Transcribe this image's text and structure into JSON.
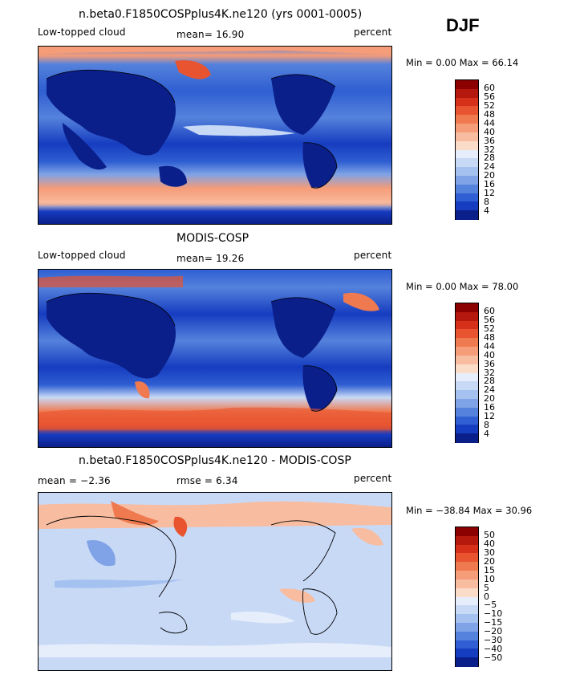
{
  "header": {
    "season": "DJF"
  },
  "panels": [
    {
      "title": "n.beta0.F1850COSPplus4K.ne120 (yrs 0001-0005)",
      "left_label": "Low-topped cloud",
      "stat": "mean=  16.90",
      "units": "percent",
      "minmax": "Min =   0.00 Max =  66.14",
      "colorbar": [
        "60",
        "56",
        "52",
        "48",
        "44",
        "40",
        "36",
        "32",
        "28",
        "24",
        "20",
        "16",
        "12",
        "8",
        "4"
      ],
      "colors": [
        "#8b0000",
        "#b5190d",
        "#d6301a",
        "#e8542f",
        "#f07a50",
        "#f59c78",
        "#f8bca0",
        "#fbdcc9",
        "#e7eefb",
        "#c8d9f6",
        "#a5c1f0",
        "#7fa3e6",
        "#5582dc",
        "#2f5fd2",
        "#163cc0",
        "#0a1f8a"
      ]
    },
    {
      "title": "MODIS-COSP",
      "left_label": "Low-topped cloud",
      "stat": "mean=  19.26",
      "units": "percent",
      "minmax": "Min =   0.00 Max =  78.00",
      "colorbar": [
        "60",
        "56",
        "52",
        "48",
        "44",
        "40",
        "36",
        "32",
        "28",
        "24",
        "20",
        "16",
        "12",
        "8",
        "4"
      ],
      "colors": [
        "#8b0000",
        "#b5190d",
        "#d6301a",
        "#e8542f",
        "#f07a50",
        "#f59c78",
        "#f8bca0",
        "#fbdcc9",
        "#e7eefb",
        "#c8d9f6",
        "#a5c1f0",
        "#7fa3e6",
        "#5582dc",
        "#2f5fd2",
        "#163cc0",
        "#0a1f8a"
      ]
    },
    {
      "title": "n.beta0.F1850COSPplus4K.ne120 - MODIS-COSP",
      "left_label": "mean =  −2.36",
      "stat": "rmse =   6.34",
      "units": "percent",
      "minmax": "Min = −38.84 Max =  30.96",
      "colorbar": [
        "50",
        "40",
        "30",
        "20",
        "15",
        "10",
        "5",
        "0",
        "−5",
        "−10",
        "−15",
        "−20",
        "−30",
        "−40",
        "−50"
      ],
      "colors": [
        "#8b0000",
        "#b5190d",
        "#d6301a",
        "#e8542f",
        "#f07a50",
        "#f59c78",
        "#f8bca0",
        "#fbdcc9",
        "#e7eefb",
        "#c8d9f6",
        "#a5c1f0",
        "#7fa3e6",
        "#5582dc",
        "#2f5fd2",
        "#163cc0",
        "#0a1f8a"
      ]
    }
  ]
}
